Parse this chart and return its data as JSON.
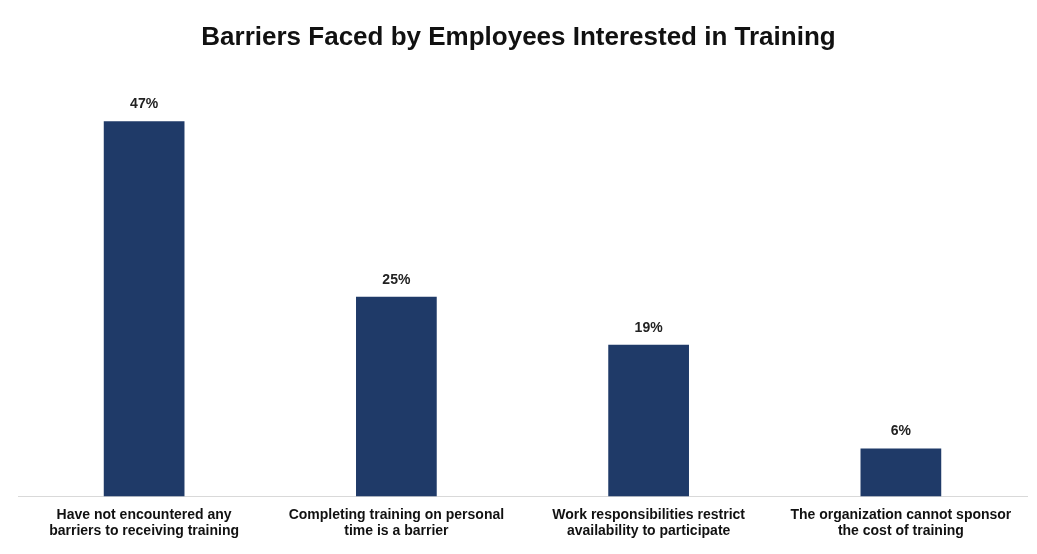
{
  "chart_data": {
    "type": "bar",
    "title": "Barriers Faced by Employees Interested in Training",
    "categories": [
      "Have not encountered any barriers to receiving training",
      "Completing training on personal time is a barrier",
      "Work responsibilities restrict availability to participate",
      "The organization cannot sponsor the cost of training"
    ],
    "values": [
      47,
      25,
      19,
      6
    ],
    "color": "#1f3a68",
    "value_labels": [
      "47%",
      "25%",
      "19%",
      "6%"
    ],
    "grid": false,
    "legend": false
  }
}
